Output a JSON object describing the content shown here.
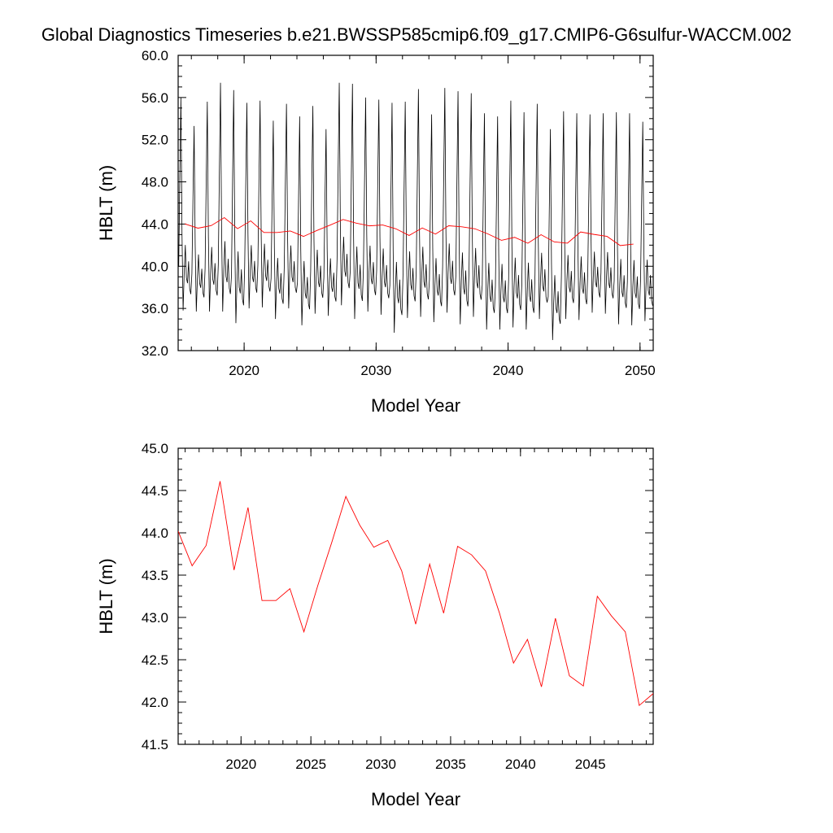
{
  "title": "Global Diagnostics Timeseries b.e21.BWSSP585cmip6.f09_g17.CMIP6-G6sulfur-WACCM.002",
  "colors": {
    "monthly": "#000000",
    "annual": "#ff0000"
  },
  "chart_data": [
    {
      "type": "line",
      "ylabel": "HBLT (m)",
      "xlabel": "Model Year",
      "xlim": [
        2015,
        2051
      ],
      "ylim": [
        32.0,
        60.0
      ],
      "xticks": [
        2020,
        2030,
        2040,
        2050
      ],
      "xtick_labels": [
        "2020",
        "2030",
        "2040",
        "2050"
      ],
      "yticks": [
        32.0,
        36.0,
        40.0,
        44.0,
        48.0,
        52.0,
        56.0,
        60.0
      ],
      "ytick_labels": [
        "32.0",
        "36.0",
        "40.0",
        "44.0",
        "48.0",
        "52.0",
        "56.0",
        "60.0"
      ],
      "grid": false,
      "series": [
        {
          "style": "monthly",
          "seasonal_cycle": {
            "months": [
              1,
              2,
              3,
              4,
              5,
              6,
              7,
              8,
              9,
              10,
              11,
              12
            ],
            "pattern_m": [
              40.0,
              48.0,
              55.5,
              43.0,
              36.0,
              39.5,
              42.0,
              39.0,
              38.5,
              40.5,
              38.0,
              37.5
            ]
          },
          "peaks_by_year": [
            [
              2015,
              56.0
            ],
            [
              2016,
              53.3
            ],
            [
              2017,
              55.6
            ],
            [
              2018,
              57.4
            ],
            [
              2019,
              56.7
            ],
            [
              2020,
              55.5
            ],
            [
              2021,
              55.7
            ],
            [
              2022,
              53.8
            ],
            [
              2023,
              55.4
            ],
            [
              2024,
              54.2
            ],
            [
              2025,
              55.2
            ],
            [
              2026,
              53.0
            ],
            [
              2027,
              57.4
            ],
            [
              2028,
              57.3
            ],
            [
              2029,
              56.0
            ],
            [
              2030,
              55.8
            ],
            [
              2031,
              55.5
            ],
            [
              2032,
              55.6
            ],
            [
              2033,
              56.8
            ],
            [
              2034,
              54.4
            ],
            [
              2035,
              56.9
            ],
            [
              2036,
              56.6
            ],
            [
              2037,
              56.4
            ],
            [
              2038,
              54.5
            ],
            [
              2039,
              54.2
            ],
            [
              2040,
              55.7
            ],
            [
              2041,
              54.6
            ],
            [
              2042,
              55.4
            ],
            [
              2043,
              53.0
            ],
            [
              2044,
              54.7
            ],
            [
              2045,
              54.5
            ],
            [
              2046,
              54.4
            ],
            [
              2047,
              54.5
            ],
            [
              2048,
              54.6
            ],
            [
              2049,
              54.5
            ],
            [
              2050,
              53.7
            ]
          ],
          "troughs_by_year": [
            [
              2015,
              35.8
            ],
            [
              2016,
              35.7
            ],
            [
              2017,
              35.7
            ],
            [
              2018,
              35.7
            ],
            [
              2019,
              34.6
            ],
            [
              2020,
              36.0
            ],
            [
              2021,
              36.1
            ],
            [
              2022,
              35.0
            ],
            [
              2023,
              36.0
            ],
            [
              2024,
              34.4
            ],
            [
              2025,
              35.5
            ],
            [
              2026,
              35.3
            ],
            [
              2027,
              36.3
            ],
            [
              2028,
              35.0
            ],
            [
              2029,
              35.7
            ],
            [
              2030,
              35.4
            ],
            [
              2031,
              33.7
            ],
            [
              2032,
              35.1
            ],
            [
              2033,
              35.2
            ],
            [
              2034,
              34.7
            ],
            [
              2035,
              35.6
            ],
            [
              2036,
              34.5
            ],
            [
              2037,
              35.2
            ],
            [
              2038,
              34.0
            ],
            [
              2039,
              34.0
            ],
            [
              2040,
              34.2
            ],
            [
              2041,
              34.0
            ],
            [
              2042,
              35.0
            ],
            [
              2043,
              33.0
            ],
            [
              2044,
              35.0
            ],
            [
              2045,
              34.9
            ],
            [
              2046,
              35.6
            ],
            [
              2047,
              35.5
            ],
            [
              2048,
              34.5
            ],
            [
              2049,
              34.4
            ],
            [
              2050,
              34.8
            ]
          ]
        },
        {
          "style": "annual",
          "x": [
            2015.5,
            2016.5,
            2017.5,
            2018.5,
            2019.5,
            2020.5,
            2021.5,
            2022.5,
            2023.5,
            2024.5,
            2025.5,
            2026.5,
            2027.5,
            2028.5,
            2029.5,
            2030.5,
            2031.5,
            2032.5,
            2033.5,
            2034.5,
            2035.5,
            2036.5,
            2037.5,
            2038.5,
            2039.5,
            2040.5,
            2041.5,
            2042.5,
            2043.5,
            2044.5,
            2045.5,
            2046.5,
            2047.5,
            2048.5,
            2049.5
          ],
          "y": [
            44.02,
            43.61,
            43.85,
            44.61,
            43.56,
            44.3,
            43.2,
            43.2,
            43.34,
            42.83,
            43.38,
            43.89,
            44.43,
            44.09,
            43.83,
            43.91,
            43.55,
            42.92,
            43.63,
            43.05,
            43.84,
            43.74,
            43.55,
            43.05,
            42.46,
            42.74,
            42.18,
            42.99,
            42.31,
            42.19,
            43.25,
            43.02,
            42.83,
            41.96,
            42.1
          ]
        }
      ]
    },
    {
      "type": "line",
      "ylabel": "HBLT (m)",
      "xlabel": "Model Year",
      "xlim": [
        2015.5,
        2049.5
      ],
      "ylim": [
        41.5,
        45.0
      ],
      "xticks": [
        2020,
        2025,
        2030,
        2035,
        2040,
        2045
      ],
      "xtick_labels": [
        "2020",
        "2025",
        "2030",
        "2035",
        "2040",
        "2045"
      ],
      "yticks": [
        41.5,
        42.0,
        42.5,
        43.0,
        43.5,
        44.0,
        44.5,
        45.0
      ],
      "ytick_labels": [
        "41.5",
        "42.0",
        "42.5",
        "43.0",
        "43.5",
        "44.0",
        "44.5",
        "45.0"
      ],
      "grid": false,
      "series": [
        {
          "style": "annual",
          "x": [
            2015.5,
            2016.5,
            2017.5,
            2018.5,
            2019.5,
            2020.5,
            2021.5,
            2022.5,
            2023.5,
            2024.5,
            2025.5,
            2026.5,
            2027.5,
            2028.5,
            2029.5,
            2030.5,
            2031.5,
            2032.5,
            2033.5,
            2034.5,
            2035.5,
            2036.5,
            2037.5,
            2038.5,
            2039.5,
            2040.5,
            2041.5,
            2042.5,
            2043.5,
            2044.5,
            2045.5,
            2046.5,
            2047.5,
            2048.5,
            2049.5
          ],
          "y": [
            44.02,
            43.61,
            43.85,
            44.61,
            43.56,
            44.3,
            43.2,
            43.2,
            43.34,
            42.83,
            43.38,
            43.89,
            44.43,
            44.09,
            43.83,
            43.91,
            43.55,
            42.92,
            43.63,
            43.05,
            43.84,
            43.74,
            43.55,
            43.05,
            42.46,
            42.74,
            42.18,
            42.99,
            42.31,
            42.19,
            43.25,
            43.02,
            42.83,
            41.96,
            42.1
          ]
        }
      ]
    }
  ]
}
